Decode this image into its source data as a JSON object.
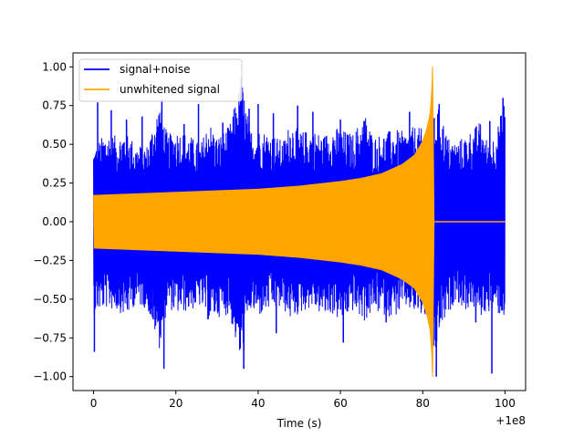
{
  "chart_data": {
    "type": "line",
    "title": "",
    "xlabel": "Time (s)",
    "ylabel": "",
    "x_offset_label": "+1e8",
    "xlim": [
      -5,
      105
    ],
    "ylim": [
      -1.09,
      1.09
    ],
    "xticks": [
      0,
      20,
      40,
      60,
      80,
      100
    ],
    "xtick_labels": [
      "0",
      "20",
      "40",
      "60",
      "80",
      "100"
    ],
    "yticks": [
      -1.0,
      -0.75,
      -0.5,
      -0.25,
      0.0,
      0.25,
      0.5,
      0.75,
      1.0
    ],
    "ytick_labels": [
      "−1.00",
      "−0.75",
      "−0.50",
      "−0.25",
      "0.00",
      "0.25",
      "0.50",
      "0.75",
      "1.00"
    ],
    "grid": false,
    "legend_position": "upper-left",
    "series": [
      {
        "name": "signal+noise",
        "color": "#0000ff",
        "note_values": "noise band envelope [time, upper, lower]",
        "envelope": [
          [
            0,
            0.48,
            -0.6
          ],
          [
            3,
            0.58,
            -0.56
          ],
          [
            6,
            0.55,
            -0.58
          ],
          [
            8,
            0.62,
            -0.62
          ],
          [
            10,
            0.5,
            -0.54
          ],
          [
            13,
            0.5,
            -0.56
          ],
          [
            16,
            0.78,
            -0.82
          ],
          [
            18,
            0.56,
            -0.55
          ],
          [
            20,
            0.6,
            -0.6
          ],
          [
            23,
            0.57,
            -0.58
          ],
          [
            26,
            0.5,
            -0.55
          ],
          [
            28,
            0.66,
            -0.64
          ],
          [
            30,
            0.55,
            -0.62
          ],
          [
            33,
            0.62,
            -0.6
          ],
          [
            36,
            0.93,
            -0.95
          ],
          [
            38,
            0.6,
            -0.58
          ],
          [
            40,
            0.6,
            -0.62
          ],
          [
            43,
            0.58,
            -0.57
          ],
          [
            46,
            0.52,
            -0.57
          ],
          [
            48,
            0.66,
            -0.64
          ],
          [
            50,
            0.58,
            -0.6
          ],
          [
            53,
            0.6,
            -0.55
          ],
          [
            56,
            0.56,
            -0.62
          ],
          [
            58,
            0.62,
            -0.6
          ],
          [
            60,
            0.6,
            -0.65
          ],
          [
            63,
            0.57,
            -0.58
          ],
          [
            66,
            0.7,
            -0.65
          ],
          [
            68,
            0.55,
            -0.58
          ],
          [
            70,
            0.57,
            -0.6
          ],
          [
            73,
            0.6,
            -0.62
          ],
          [
            76,
            0.58,
            -0.56
          ],
          [
            78,
            0.62,
            -0.6
          ],
          [
            80,
            0.6,
            -0.62
          ],
          [
            82,
            0.62,
            -0.64
          ],
          [
            83,
            0.7,
            -0.9
          ],
          [
            84,
            0.76,
            -0.72
          ],
          [
            86,
            0.55,
            -0.62
          ],
          [
            88,
            0.52,
            -0.5
          ],
          [
            90,
            0.55,
            -0.58
          ],
          [
            92,
            0.6,
            -0.55
          ],
          [
            94,
            0.65,
            -0.62
          ],
          [
            96,
            0.5,
            -0.58
          ],
          [
            98,
            0.6,
            -0.6
          ],
          [
            100,
            0.8,
            -0.62
          ]
        ],
        "spikes": [
          [
            0.2,
            -0.84
          ],
          [
            1.0,
            0.77
          ],
          [
            4.3,
            0.72
          ],
          [
            8.0,
            0.66
          ],
          [
            11.8,
            0.68
          ],
          [
            14.5,
            -0.63
          ],
          [
            16.6,
            0.79
          ],
          [
            17.1,
            -0.95
          ],
          [
            22.0,
            0.63
          ],
          [
            25.5,
            0.76
          ],
          [
            27.8,
            -0.63
          ],
          [
            31.4,
            0.64
          ],
          [
            35.9,
            0.93
          ],
          [
            36.5,
            -0.95
          ],
          [
            37.8,
            0.73
          ],
          [
            40.0,
            0.76
          ],
          [
            43.7,
            0.7
          ],
          [
            44.4,
            -0.72
          ],
          [
            49.6,
            0.75
          ],
          [
            53.3,
            0.71
          ],
          [
            60.0,
            0.66
          ],
          [
            60.7,
            -0.78
          ],
          [
            65.8,
            0.65
          ],
          [
            71.1,
            -0.65
          ],
          [
            76.8,
            0.71
          ],
          [
            82.6,
            -0.8
          ],
          [
            83.3,
            -1.0
          ],
          [
            84.0,
            0.76
          ],
          [
            92.9,
            -0.65
          ],
          [
            96.3,
            0.65
          ],
          [
            96.8,
            -0.98
          ],
          [
            99.5,
            0.8
          ]
        ]
      },
      {
        "name": "unwhitened signal",
        "color": "#ffa500",
        "note_values": "chirp envelope amplitude [time, amplitude]; symmetric about 0",
        "envelope": [
          [
            0,
            0.17
          ],
          [
            10,
            0.18
          ],
          [
            20,
            0.19
          ],
          [
            30,
            0.2
          ],
          [
            40,
            0.21
          ],
          [
            50,
            0.23
          ],
          [
            60,
            0.26
          ],
          [
            65,
            0.28
          ],
          [
            70,
            0.31
          ],
          [
            75,
            0.37
          ],
          [
            78,
            0.43
          ],
          [
            80,
            0.52
          ],
          [
            81,
            0.6
          ],
          [
            81.8,
            0.7
          ],
          [
            82.2,
            0.85
          ],
          [
            82.4,
            1.0
          ]
        ],
        "after_merger": [
          [
            82.9,
            0.0
          ],
          [
            100,
            0.0
          ]
        ]
      }
    ]
  }
}
